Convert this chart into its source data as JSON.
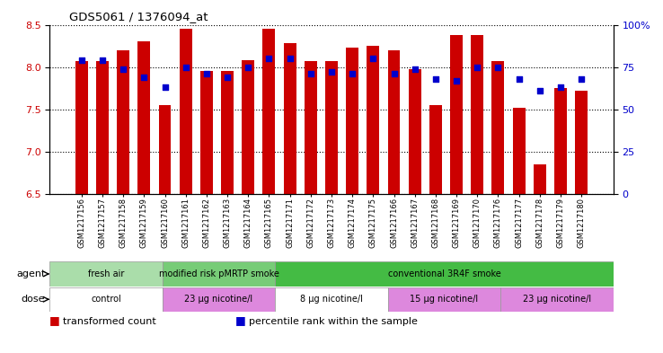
{
  "title": "GDS5061 / 1376094_at",
  "samples": [
    "GSM1217156",
    "GSM1217157",
    "GSM1217158",
    "GSM1217159",
    "GSM1217160",
    "GSM1217161",
    "GSM1217162",
    "GSM1217163",
    "GSM1217164",
    "GSM1217165",
    "GSM1217171",
    "GSM1217172",
    "GSM1217173",
    "GSM1217174",
    "GSM1217175",
    "GSM1217166",
    "GSM1217167",
    "GSM1217168",
    "GSM1217169",
    "GSM1217170",
    "GSM1217176",
    "GSM1217177",
    "GSM1217178",
    "GSM1217179",
    "GSM1217180"
  ],
  "bar_values": [
    8.07,
    8.07,
    8.2,
    8.3,
    7.55,
    8.45,
    7.95,
    7.95,
    8.08,
    8.45,
    8.28,
    8.07,
    8.07,
    8.23,
    8.25,
    8.2,
    7.97,
    7.55,
    8.38,
    8.38,
    8.07,
    7.52,
    6.85,
    7.75,
    7.72
  ],
  "percentile_values": [
    79,
    79,
    74,
    69,
    63,
    75,
    71,
    69,
    75,
    80,
    80,
    71,
    72,
    71,
    80,
    71,
    74,
    68,
    67,
    75,
    75,
    68,
    61,
    63,
    68
  ],
  "ylim_left": [
    6.5,
    8.5
  ],
  "ylim_right": [
    0,
    100
  ],
  "yticks_left": [
    6.5,
    7.0,
    7.5,
    8.0,
    8.5
  ],
  "yticks_right": [
    0,
    25,
    50,
    75,
    100
  ],
  "bar_color": "#CC0000",
  "dot_color": "#0000CC",
  "bar_width": 0.6,
  "agent_groups": [
    {
      "label": "fresh air",
      "start": 0,
      "end": 4,
      "color": "#AADDAA"
    },
    {
      "label": "modified risk pMRTP smoke",
      "start": 5,
      "end": 9,
      "color": "#77CC77"
    },
    {
      "label": "conventional 3R4F smoke",
      "start": 10,
      "end": 24,
      "color": "#44BB44"
    }
  ],
  "dose_groups": [
    {
      "label": "control",
      "start": 0,
      "end": 4,
      "color": "#FFFFFF"
    },
    {
      "label": "23 μg nicotine/l",
      "start": 5,
      "end": 9,
      "color": "#DD88DD"
    },
    {
      "label": "8 μg nicotine/l",
      "start": 10,
      "end": 14,
      "color": "#FFFFFF"
    },
    {
      "label": "15 μg nicotine/l",
      "start": 15,
      "end": 19,
      "color": "#DD88DD"
    },
    {
      "label": "23 μg nicotine/l",
      "start": 20,
      "end": 24,
      "color": "#DD88DD"
    }
  ],
  "legend_items": [
    {
      "label": "transformed count",
      "color": "#CC0000"
    },
    {
      "label": "percentile rank within the sample",
      "color": "#0000CC"
    }
  ],
  "fig_width": 7.38,
  "fig_height": 3.93,
  "dpi": 100
}
